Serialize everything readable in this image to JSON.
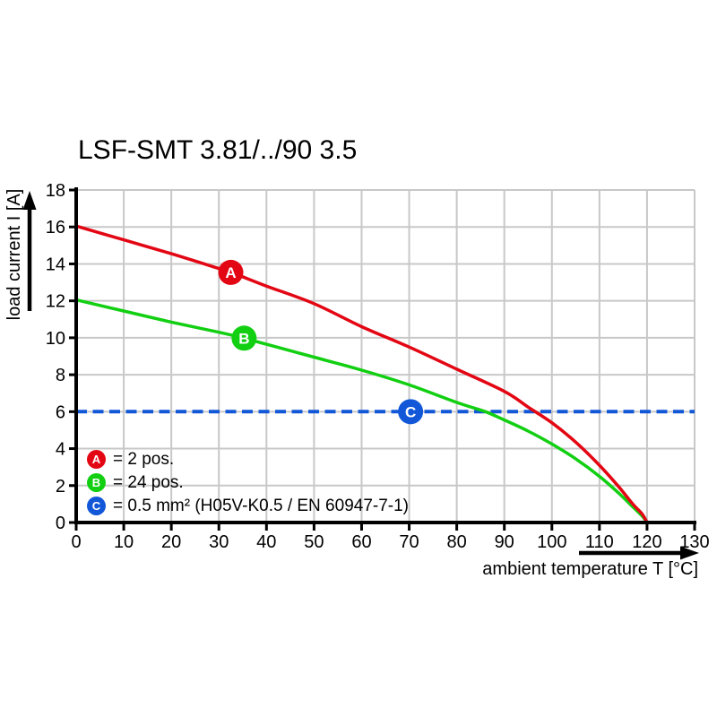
{
  "chart_data": {
    "type": "line",
    "title": "LSF-SMT 3.81/../90 3.5",
    "xlabel": "ambient temperature T [°C]",
    "ylabel": "load current I [A]",
    "xlim": [
      0,
      130
    ],
    "ylim": [
      0,
      18
    ],
    "x_ticks": [
      0,
      10,
      20,
      30,
      40,
      50,
      60,
      70,
      80,
      90,
      100,
      110,
      120,
      130
    ],
    "y_ticks": [
      0,
      2,
      4,
      6,
      8,
      10,
      12,
      14,
      16,
      18
    ],
    "grid": true,
    "grid_color": "#c8c8c8",
    "axis_color": "#000000",
    "series": [
      {
        "name": "A",
        "label": "2 pos.",
        "color": "#e30613",
        "line_style": "solid",
        "marker": [
          32.5,
          13.54
        ],
        "points": [
          [
            0,
            16.05
          ],
          [
            10,
            15.3
          ],
          [
            20,
            14.55
          ],
          [
            30,
            13.75
          ],
          [
            33,
            13.5
          ],
          [
            40,
            12.8
          ],
          [
            50,
            11.85
          ],
          [
            60,
            10.6
          ],
          [
            70,
            9.5
          ],
          [
            80,
            8.3
          ],
          [
            90,
            7.1
          ],
          [
            95,
            6.25
          ],
          [
            100,
            5.4
          ],
          [
            105,
            4.35
          ],
          [
            110,
            3.1
          ],
          [
            114,
            1.95
          ],
          [
            117,
            1.0
          ],
          [
            119,
            0.45
          ],
          [
            120,
            0
          ]
        ]
      },
      {
        "name": "B",
        "label": "24 pos.",
        "color": "#12cf12",
        "line_style": "solid",
        "marker": [
          35.3,
          9.98
        ],
        "points": [
          [
            0,
            12.05
          ],
          [
            10,
            11.45
          ],
          [
            20,
            10.85
          ],
          [
            30,
            10.3
          ],
          [
            35,
            10.0
          ],
          [
            40,
            9.65
          ],
          [
            50,
            8.95
          ],
          [
            60,
            8.25
          ],
          [
            70,
            7.45
          ],
          [
            80,
            6.5
          ],
          [
            86,
            6.0
          ],
          [
            90,
            5.55
          ],
          [
            95,
            4.95
          ],
          [
            100,
            4.25
          ],
          [
            105,
            3.45
          ],
          [
            110,
            2.5
          ],
          [
            114,
            1.6
          ],
          [
            117,
            0.85
          ],
          [
            119,
            0.35
          ],
          [
            120,
            0
          ]
        ]
      },
      {
        "name": "C",
        "label": "0.5 mm² (H05V-K0.5 / EN 60947-7-1)",
        "color": "#1157d8",
        "line_style": "dashed",
        "marker": [
          70.3,
          6
        ],
        "points": [
          [
            0,
            6
          ],
          [
            130,
            6
          ]
        ]
      }
    ],
    "legend": [
      {
        "letter": "A",
        "color": "#e30613",
        "text": "= 2 pos."
      },
      {
        "letter": "B",
        "color": "#12cf12",
        "text": "= 24 pos."
      },
      {
        "letter": "C",
        "color": "#1157d8",
        "text": "= 0.5 mm² (H05V-K0.5 / EN 60947-7-1)"
      }
    ]
  }
}
